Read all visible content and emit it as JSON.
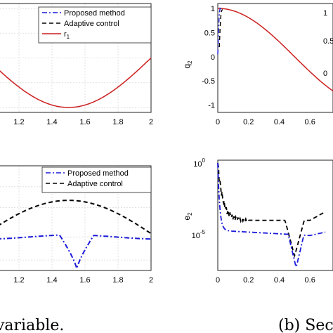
{
  "colors": {
    "proposed": "#1a1adb",
    "adaptive": "#000000",
    "reference": "#cc1f1f"
  },
  "chart_data": [
    {
      "panel": "top-left",
      "type": "line",
      "x": [
        1,
        1.1,
        1.2,
        1.3,
        1.4,
        1.5,
        1.6,
        1.7,
        1.8,
        1.9,
        2.0
      ],
      "xticks": [
        "1.2",
        "1.4",
        "1.6",
        "1.8",
        "2"
      ],
      "xlim": [
        1.0,
        2.0
      ],
      "ylim": [
        -1.1,
        1.1
      ],
      "grid": true,
      "legend": {
        "placement": "top-right",
        "entries": [
          "Proposed method",
          "Adaptive control",
          "r_1"
        ]
      },
      "series": [
        {
          "name": "r_1",
          "style": "solid",
          "color": "#cc1f1f",
          "values": [
            0.0,
            -0.31,
            -0.59,
            -0.81,
            -0.95,
            -1.0,
            -0.95,
            -0.81,
            -0.59,
            -0.31,
            0.0
          ]
        }
      ]
    },
    {
      "panel": "top-right",
      "type": "line",
      "ylabel": "q_2",
      "x": [
        0,
        0.1,
        0.2,
        0.3,
        0.4,
        0.5,
        0.6,
        0.7
      ],
      "xticks": [
        "0",
        "0.2",
        "0.4",
        "0.6"
      ],
      "yticks": [
        "-1",
        "-0.5",
        "0",
        "0.5",
        "1"
      ],
      "xlim": [
        0,
        0.75
      ],
      "ylim": [
        -1.15,
        1.1
      ],
      "grid": false,
      "series": [
        {
          "name": "reference",
          "style": "solid",
          "color": "#cc1f1f",
          "values": [
            1.0,
            0.95,
            0.81,
            0.59,
            0.31,
            0.0,
            -0.31,
            -0.59
          ]
        },
        {
          "name": "transient",
          "style": "dashdot",
          "color": "#1a1adb",
          "points": [
            [
              0.0,
              0.05
            ],
            [
              0.005,
              0.55
            ],
            [
              0.01,
              0.9
            ],
            [
              0.015,
              1.0
            ],
            [
              0.02,
              0.98
            ]
          ]
        },
        {
          "name": "transient-adaptive",
          "style": "dashed",
          "color": "#000000",
          "points": [
            [
              0.01,
              0.2
            ],
            [
              0.015,
              0.6
            ],
            [
              0.02,
              0.85
            ],
            [
              0.025,
              0.95
            ],
            [
              0.03,
              0.98
            ]
          ]
        }
      ],
      "side_labels": [
        "1",
        "0.5",
        "0"
      ]
    },
    {
      "panel": "bottom-left",
      "type": "line",
      "x": [
        1,
        1.1,
        1.2,
        1.3,
        1.4,
        1.5,
        1.55,
        1.6,
        1.7,
        1.8,
        1.9,
        2.0
      ],
      "xticks": [
        "1.2",
        "1.4",
        "1.6",
        "1.8",
        "2"
      ],
      "xlim": [
        1.0,
        2.0
      ],
      "grid": true,
      "legend": {
        "placement": "top-right",
        "entries": [
          "Proposed method",
          "Adaptive control"
        ]
      },
      "series": [
        {
          "name": "Proposed method",
          "style": "dashdot",
          "color": "#1a1adb",
          "values": [
            0.32,
            0.33,
            0.33,
            0.33,
            0.32,
            0.28,
            0.0,
            0.28,
            0.32,
            0.33,
            0.33,
            0.33
          ]
        },
        {
          "name": "Adaptive control",
          "style": "dashed",
          "color": "#000000",
          "values": [
            0.22,
            0.42,
            0.55,
            0.62,
            0.65,
            0.66,
            0.65,
            0.64,
            0.6,
            0.52,
            0.4,
            0.3
          ]
        }
      ]
    },
    {
      "panel": "bottom-right",
      "type": "line",
      "ylabel": "e_2",
      "yscale": "log",
      "x": [
        0,
        0.1,
        0.2,
        0.3,
        0.4,
        0.5,
        0.6,
        0.7
      ],
      "xticks": [
        "0",
        "0.2",
        "0.4",
        "0.6"
      ],
      "yticks": [
        "10^0",
        "10^-5"
      ],
      "xlim": [
        0,
        0.75
      ],
      "ylim_exp": [
        -7.5,
        0.2
      ],
      "grid": false,
      "series": [
        {
          "name": "Proposed method",
          "style": "dashdot",
          "color": "#1a1adb",
          "points": [
            [
              0.0,
              0.0
            ],
            [
              0.02,
              -1.5
            ],
            [
              0.04,
              -5.0
            ],
            [
              0.1,
              -4.5
            ],
            [
              0.2,
              -4.7
            ],
            [
              0.3,
              -4.8
            ],
            [
              0.4,
              -5.2
            ],
            [
              0.48,
              -6.0
            ],
            [
              0.51,
              -7.3
            ],
            [
              0.54,
              -6.0
            ],
            [
              0.62,
              -5.3
            ],
            [
              0.7,
              -5.0
            ]
          ]
        },
        {
          "name": "Adaptive control",
          "style": "dashed",
          "color": "#000000",
          "points": [
            [
              0.0,
              0.0
            ],
            [
              0.03,
              -2.5
            ],
            [
              0.06,
              -3.5
            ],
            [
              0.1,
              -3.8
            ],
            [
              0.15,
              -4.1
            ],
            [
              0.2,
              -4.0
            ],
            [
              0.3,
              -4.0
            ],
            [
              0.4,
              -4.0
            ],
            [
              0.47,
              -4.3
            ],
            [
              0.5,
              -6.5
            ],
            [
              0.53,
              -4.3
            ],
            [
              0.62,
              -4.2
            ],
            [
              0.7,
              -3.7
            ]
          ]
        }
      ]
    }
  ],
  "captions": {
    "left": "variable.",
    "right": "(b) Sec"
  }
}
